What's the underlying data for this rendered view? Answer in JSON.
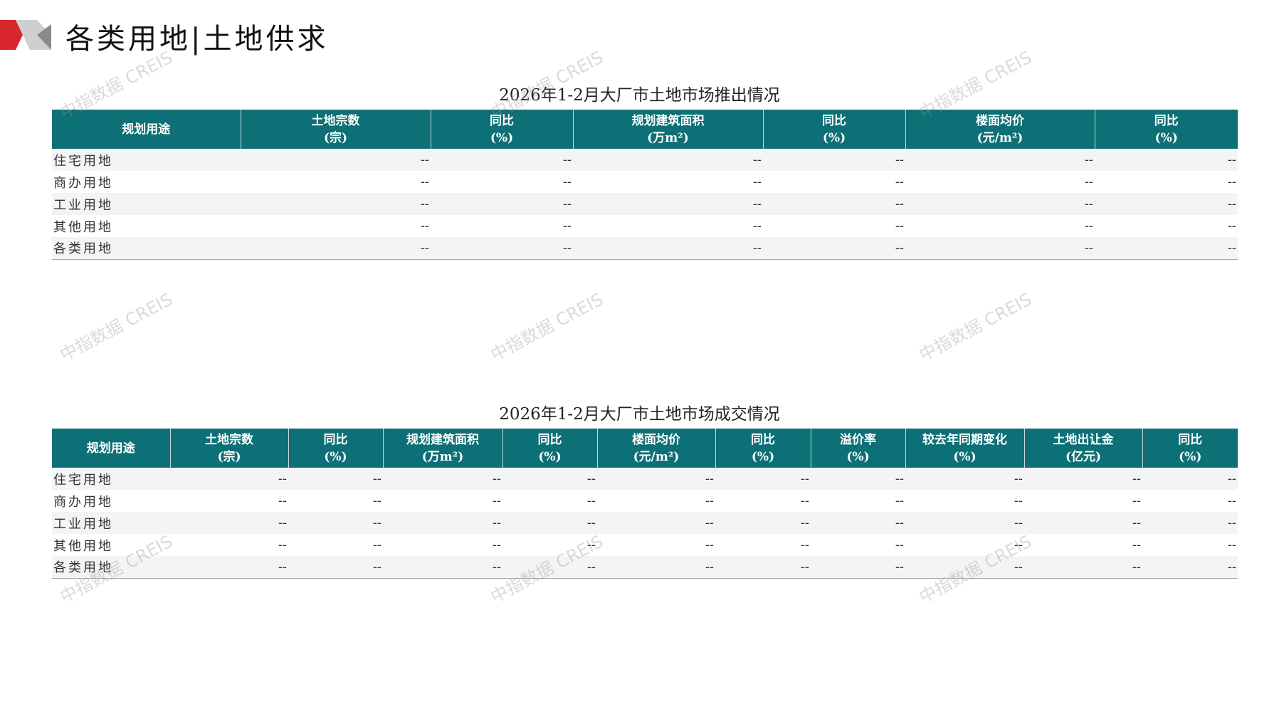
{
  "header": {
    "title": "各类用地|土地供求"
  },
  "watermark": "中指数据 CREIS",
  "colors": {
    "header_bg": "#0d7076",
    "logo_red": "#d7262c",
    "logo_gray": "#bdbdbd"
  },
  "table1": {
    "title": "2026年1-2月大厂市土地市场推出情况",
    "headers": [
      [
        "规划用途",
        ""
      ],
      [
        "土地宗数",
        "(宗)"
      ],
      [
        "同比",
        "(%)"
      ],
      [
        "规划建筑面积",
        "(万m²)"
      ],
      [
        "同比",
        "(%)"
      ],
      [
        "楼面均价",
        "(元/m²)"
      ],
      [
        "同比",
        "(%)"
      ]
    ],
    "rows": [
      [
        "住宅用地",
        "--",
        "--",
        "--",
        "--",
        "--",
        "--"
      ],
      [
        "商办用地",
        "--",
        "--",
        "--",
        "--",
        "--",
        "--"
      ],
      [
        "工业用地",
        "--",
        "--",
        "--",
        "--",
        "--",
        "--"
      ],
      [
        "其他用地",
        "--",
        "--",
        "--",
        "--",
        "--",
        "--"
      ],
      [
        "各类用地",
        "--",
        "--",
        "--",
        "--",
        "--",
        "--"
      ]
    ]
  },
  "table2": {
    "title": "2026年1-2月大厂市土地市场成交情况",
    "headers": [
      [
        "规划用途",
        ""
      ],
      [
        "土地宗数",
        "(宗)"
      ],
      [
        "同比",
        "(%)"
      ],
      [
        "规划建筑面积",
        "(万m²)"
      ],
      [
        "同比",
        "(%)"
      ],
      [
        "楼面均价",
        "(元/m²)"
      ],
      [
        "同比",
        "(%)"
      ],
      [
        "溢价率",
        "(%)"
      ],
      [
        "较去年同期变化",
        "(%)"
      ],
      [
        "土地出让金",
        "(亿元)"
      ],
      [
        "同比",
        "(%)"
      ]
    ],
    "rows": [
      [
        "住宅用地",
        "--",
        "--",
        "--",
        "--",
        "--",
        "--",
        "--",
        "--",
        "--",
        "--"
      ],
      [
        "商办用地",
        "--",
        "--",
        "--",
        "--",
        "--",
        "--",
        "--",
        "--",
        "--",
        "--"
      ],
      [
        "工业用地",
        "--",
        "--",
        "--",
        "--",
        "--",
        "--",
        "--",
        "--",
        "--",
        "--"
      ],
      [
        "其他用地",
        "--",
        "--",
        "--",
        "--",
        "--",
        "--",
        "--",
        "--",
        "--",
        "--"
      ],
      [
        "各类用地",
        "--",
        "--",
        "--",
        "--",
        "--",
        "--",
        "--",
        "--",
        "--",
        "--"
      ]
    ]
  }
}
